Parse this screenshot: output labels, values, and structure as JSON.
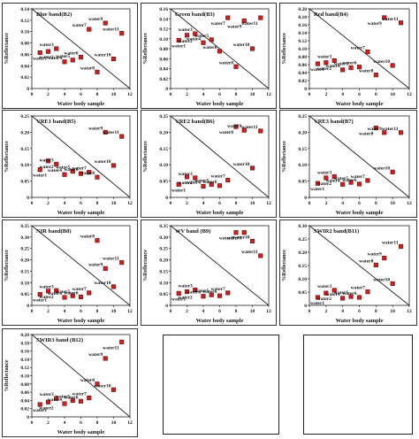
{
  "chart_data": [
    {
      "type": "scatter",
      "title": "Blue band(B2)",
      "xlabel": "Water body sample",
      "ylabel": "%Reflectance",
      "xlim": [
        0,
        12
      ],
      "ylim": [
        0,
        0.14
      ],
      "yticks": [
        0,
        0.02,
        0.04,
        0.06,
        0.08,
        0.1,
        0.12,
        0.14
      ],
      "xticks": [
        0,
        2,
        4,
        6,
        8,
        10,
        12
      ],
      "grid": false,
      "points": [
        {
          "label": "water1",
          "x": 1,
          "y": 0.063
        },
        {
          "label": "water2",
          "x": 2,
          "y": 0.065
        },
        {
          "label": "water3",
          "x": 3,
          "y": 0.07
        },
        {
          "label": "water4",
          "x": 4,
          "y": 0.047
        },
        {
          "label": "water5",
          "x": 5,
          "y": 0.05
        },
        {
          "label": "water6",
          "x": 6,
          "y": 0.055
        },
        {
          "label": "water7",
          "x": 7,
          "y": 0.104
        },
        {
          "label": "water8",
          "x": 8,
          "y": 0.029
        },
        {
          "label": "water9",
          "x": 9,
          "y": 0.115
        },
        {
          "label": "water10",
          "x": 10,
          "y": 0.052
        },
        {
          "label": "water11",
          "x": 11,
          "y": 0.097
        }
      ]
    },
    {
      "type": "scatter",
      "title": "Green band(B3)",
      "xlabel": "Water body sample",
      "ylabel": "%Reflectance",
      "xlim": [
        0,
        12
      ],
      "ylim": [
        0,
        0.16
      ],
      "yticks": [
        0,
        0.02,
        0.04,
        0.06,
        0.08,
        0.1,
        0.12,
        0.14,
        0.16
      ],
      "xticks": [
        0,
        2,
        4,
        6,
        8,
        10,
        12
      ],
      "grid": false,
      "points": [
        {
          "label": "water1",
          "x": 1,
          "y": 0.097
        },
        {
          "label": "water2",
          "x": 2,
          "y": 0.107
        },
        {
          "label": "water3",
          "x": 3,
          "y": 0.11
        },
        {
          "label": "water4",
          "x": 4,
          "y": 0.092
        },
        {
          "label": "water5",
          "x": 5,
          "y": 0.098
        },
        {
          "label": "water6",
          "x": 6,
          "y": 0.075
        },
        {
          "label": "water7",
          "x": 7,
          "y": 0.142
        },
        {
          "label": "water8",
          "x": 8,
          "y": 0.044
        },
        {
          "label": "water9",
          "x": 9,
          "y": 0.136
        },
        {
          "label": "water10",
          "x": 10,
          "y": 0.08
        },
        {
          "label": "water11",
          "x": 11,
          "y": 0.142
        }
      ]
    },
    {
      "type": "scatter",
      "title": "Red band(B4)",
      "xlabel": "Water body sample",
      "ylabel": "%Reflectance",
      "xlim": [
        0,
        12
      ],
      "ylim": [
        0,
        0.2
      ],
      "yticks": [
        0,
        0.02,
        0.04,
        0.06,
        0.08,
        0.1,
        0.12,
        0.14,
        0.16,
        0.18,
        0.2
      ],
      "xticks": [
        0,
        2,
        4,
        6,
        8,
        10,
        12
      ],
      "grid": false,
      "points": [
        {
          "label": "water1",
          "x": 1,
          "y": 0.062
        },
        {
          "label": "water2",
          "x": 2,
          "y": 0.065
        },
        {
          "label": "water3",
          "x": 3,
          "y": 0.07
        },
        {
          "label": "water4",
          "x": 4,
          "y": 0.047
        },
        {
          "label": "water5",
          "x": 5,
          "y": 0.052
        },
        {
          "label": "water6",
          "x": 6,
          "y": 0.054
        },
        {
          "label": "water7",
          "x": 7,
          "y": 0.092
        },
        {
          "label": "water8",
          "x": 8,
          "y": 0.034
        },
        {
          "label": "water9",
          "x": 9,
          "y": 0.178
        },
        {
          "label": "water10",
          "x": 10,
          "y": 0.058
        },
        {
          "label": "water11",
          "x": 11,
          "y": 0.165
        }
      ]
    },
    {
      "type": "scatter",
      "title": "VRE1 band(B5)",
      "xlabel": "Water body sample",
      "ylabel": "%Reflectance",
      "xlim": [
        0,
        12
      ],
      "ylim": [
        0,
        0.25
      ],
      "yticks": [
        0,
        0.05,
        0.1,
        0.15,
        0.2,
        0.25
      ],
      "xticks": [
        0,
        2,
        4,
        6,
        8,
        10,
        12
      ],
      "grid": false,
      "points": [
        {
          "label": "water1",
          "x": 1,
          "y": 0.085
        },
        {
          "label": "water2",
          "x": 2,
          "y": 0.112
        },
        {
          "label": "water3",
          "x": 3,
          "y": 0.102
        },
        {
          "label": "water4",
          "x": 4,
          "y": 0.07
        },
        {
          "label": "water5",
          "x": 5,
          "y": 0.08
        },
        {
          "label": "water6",
          "x": 6,
          "y": 0.073
        },
        {
          "label": "water7",
          "x": 7,
          "y": 0.077
        },
        {
          "label": "water8",
          "x": 8,
          "y": 0.062
        },
        {
          "label": "water9",
          "x": 9,
          "y": 0.2
        },
        {
          "label": "water10",
          "x": 10,
          "y": 0.098
        },
        {
          "label": "water11",
          "x": 11,
          "y": 0.187
        }
      ]
    },
    {
      "type": "scatter",
      "title": "VRE2 band(B6)",
      "xlabel": "Water body sample",
      "ylabel": "%Reflectance",
      "xlim": [
        0,
        12
      ],
      "ylim": [
        0,
        0.25
      ],
      "yticks": [
        0,
        0.05,
        0.1,
        0.15,
        0.2,
        0.25
      ],
      "xticks": [
        0,
        2,
        4,
        6,
        8,
        10,
        12
      ],
      "grid": false,
      "points": [
        {
          "label": "water1",
          "x": 1,
          "y": 0.04
        },
        {
          "label": "water2",
          "x": 2,
          "y": 0.063
        },
        {
          "label": "water3",
          "x": 3,
          "y": 0.06
        },
        {
          "label": "water4",
          "x": 4,
          "y": 0.034
        },
        {
          "label": "water5",
          "x": 5,
          "y": 0.04
        },
        {
          "label": "water6",
          "x": 6,
          "y": 0.036
        },
        {
          "label": "water7",
          "x": 7,
          "y": 0.053
        },
        {
          "label": "water8",
          "x": 8,
          "y": 0.217
        },
        {
          "label": "water9",
          "x": 9,
          "y": 0.206
        },
        {
          "label": "water10",
          "x": 10,
          "y": 0.09
        },
        {
          "label": "water11",
          "x": 11,
          "y": 0.204
        }
      ]
    },
    {
      "type": "scatter",
      "title": "VRE3 band(B7)",
      "xlabel": "Water body sample",
      "ylabel": "%Reflectance",
      "xlim": [
        0,
        12
      ],
      "ylim": [
        0,
        0.25
      ],
      "yticks": [
        0,
        0.05,
        0.1,
        0.15,
        0.2,
        0.25
      ],
      "xticks": [
        0,
        2,
        4,
        6,
        8,
        10,
        12
      ],
      "grid": false,
      "points": [
        {
          "label": "water1",
          "x": 1,
          "y": 0.043
        },
        {
          "label": "water2",
          "x": 2,
          "y": 0.06
        },
        {
          "label": "water3",
          "x": 3,
          "y": 0.064
        },
        {
          "label": "water4",
          "x": 4,
          "y": 0.04
        },
        {
          "label": "water5",
          "x": 5,
          "y": 0.046
        },
        {
          "label": "water6",
          "x": 6,
          "y": 0.041
        },
        {
          "label": "water7",
          "x": 7,
          "y": 0.052
        },
        {
          "label": "water8",
          "x": 8,
          "y": 0.213
        },
        {
          "label": "water9",
          "x": 9,
          "y": 0.199
        },
        {
          "label": "water10",
          "x": 10,
          "y": 0.078
        },
        {
          "label": "water11",
          "x": 11,
          "y": 0.199
        }
      ]
    },
    {
      "type": "scatter",
      "title": "NIR band(B8)",
      "xlabel": "Water body sample",
      "ylabel": "%Reflectance",
      "xlim": [
        0,
        12
      ],
      "ylim": [
        0,
        0.35
      ],
      "yticks": [
        0,
        0.05,
        0.1,
        0.15,
        0.2,
        0.25,
        0.3,
        0.35
      ],
      "xticks": [
        0,
        2,
        4,
        6,
        8,
        10,
        12
      ],
      "grid": false,
      "points": [
        {
          "label": "water1",
          "x": 1,
          "y": 0.048
        },
        {
          "label": "water2",
          "x": 2,
          "y": 0.063
        },
        {
          "label": "water3",
          "x": 3,
          "y": 0.065
        },
        {
          "label": "water4",
          "x": 4,
          "y": 0.035
        },
        {
          "label": "water5",
          "x": 5,
          "y": 0.042
        },
        {
          "label": "water6",
          "x": 6,
          "y": 0.037
        },
        {
          "label": "water7",
          "x": 7,
          "y": 0.055
        },
        {
          "label": "water8",
          "x": 8,
          "y": 0.285
        },
        {
          "label": "water9",
          "x": 9,
          "y": 0.162
        },
        {
          "label": "water10",
          "x": 10,
          "y": 0.082
        },
        {
          "label": "water11",
          "x": 11,
          "y": 0.188
        }
      ]
    },
    {
      "type": "scatter",
      "title": "WV band (B9)",
      "xlabel": "Water body sample",
      "ylabel": "%Reflectance",
      "xlim": [
        0,
        12
      ],
      "ylim": [
        0,
        0.35
      ],
      "yticks": [
        0,
        0.05,
        0.1,
        0.15,
        0.2,
        0.25,
        0.3,
        0.35
      ],
      "xticks": [
        0,
        2,
        4,
        6,
        8,
        10,
        12
      ],
      "grid": false,
      "points": [
        {
          "label": "water1",
          "x": 1,
          "y": 0.053
        },
        {
          "label": "water2",
          "x": 2,
          "y": 0.06
        },
        {
          "label": "water3",
          "x": 3,
          "y": 0.068
        },
        {
          "label": "water4",
          "x": 4,
          "y": 0.04
        },
        {
          "label": "water5",
          "x": 5,
          "y": 0.046
        },
        {
          "label": "water6",
          "x": 6,
          "y": 0.042
        },
        {
          "label": "water7",
          "x": 7,
          "y": 0.055
        },
        {
          "label": "water8",
          "x": 8,
          "y": 0.32
        },
        {
          "label": "water9",
          "x": 9,
          "y": 0.32
        },
        {
          "label": "water10",
          "x": 10,
          "y": 0.282
        },
        {
          "label": "water11",
          "x": 11,
          "y": 0.218
        }
      ]
    },
    {
      "type": "scatter",
      "title": "SWIR2 band(B11)",
      "xlabel": "Water body sample",
      "ylabel": "%Reflectance",
      "xlim": [
        0,
        12
      ],
      "ylim": [
        0,
        0.3
      ],
      "yticks": [
        0,
        0.05,
        0.1,
        0.15,
        0.2,
        0.25,
        0.3
      ],
      "xticks": [
        0,
        2,
        4,
        6,
        8,
        10,
        12
      ],
      "grid": false,
      "points": [
        {
          "label": "water1",
          "x": 1,
          "y": 0.03
        },
        {
          "label": "water2",
          "x": 2,
          "y": 0.046
        },
        {
          "label": "water3",
          "x": 3,
          "y": 0.057
        },
        {
          "label": "water4",
          "x": 4,
          "y": 0.027
        },
        {
          "label": "water5",
          "x": 5,
          "y": 0.033
        },
        {
          "label": "water6",
          "x": 6,
          "y": 0.03
        },
        {
          "label": "water7",
          "x": 7,
          "y": 0.051
        },
        {
          "label": "water8",
          "x": 8,
          "y": 0.152
        },
        {
          "label": "water9",
          "x": 9,
          "y": 0.178
        },
        {
          "label": "water10",
          "x": 10,
          "y": 0.082
        },
        {
          "label": "water11",
          "x": 11,
          "y": 0.222
        }
      ]
    },
    {
      "type": "scatter",
      "title": "SWIR3 band (B12)",
      "xlabel": "Water body sample",
      "ylabel": "%Reflectance",
      "xlim": [
        0,
        12
      ],
      "ylim": [
        0,
        0.2
      ],
      "yticks": [
        0,
        0.02,
        0.04,
        0.06,
        0.08,
        0.1,
        0.12,
        0.14,
        0.16,
        0.18,
        0.2
      ],
      "xticks": [
        0,
        2,
        4,
        6,
        8,
        10,
        12
      ],
      "grid": false,
      "points": [
        {
          "label": "water1",
          "x": 1,
          "y": 0.03
        },
        {
          "label": "water2",
          "x": 2,
          "y": 0.036
        },
        {
          "label": "water3",
          "x": 3,
          "y": 0.045
        },
        {
          "label": "water4",
          "x": 4,
          "y": 0.032
        },
        {
          "label": "water5",
          "x": 5,
          "y": 0.04
        },
        {
          "label": "water6",
          "x": 6,
          "y": 0.038
        },
        {
          "label": "water7",
          "x": 7,
          "y": 0.046
        },
        {
          "label": "water8",
          "x": 8,
          "y": 0.08
        },
        {
          "label": "water9",
          "x": 9,
          "y": 0.142
        },
        {
          "label": "water10",
          "x": 10,
          "y": 0.066
        },
        {
          "label": "water11",
          "x": 11,
          "y": 0.182
        }
      ]
    }
  ],
  "style": {
    "marker_color": "#cc1f1f",
    "marker_edge": "#5a0a0a",
    "line_color": "#222222",
    "text_color": "#111111"
  }
}
